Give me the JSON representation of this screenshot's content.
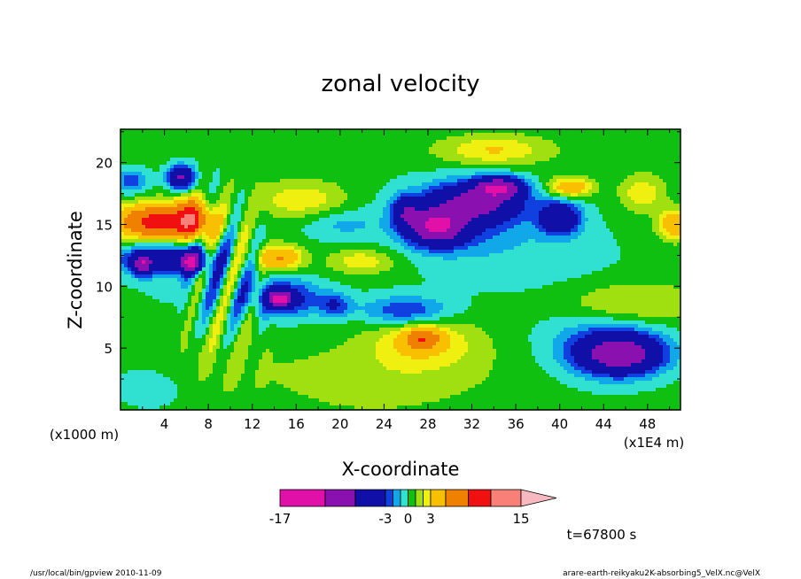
{
  "chart_data": {
    "type": "heatmap",
    "title": "zonal velocity",
    "xlabel": "X-coordinate",
    "ylabel": "Z-coordinate",
    "x_unit_left": "(x1000 m)",
    "x_unit_right": "(x1E4 m)",
    "xlim": [
      0,
      51
    ],
    "ylim": [
      0,
      22.7
    ],
    "x_ticks": [
      4,
      8,
      12,
      16,
      20,
      24,
      28,
      32,
      36,
      40,
      44,
      48
    ],
    "y_ticks": [
      5,
      10,
      15,
      20
    ],
    "time_label": "t=67800 s",
    "colorbar": {
      "levels": [
        -17,
        -11,
        -7,
        -3,
        -2,
        -1,
        0,
        1,
        2,
        3,
        5,
        8,
        11,
        15
      ],
      "tick_labels": [
        "-17",
        "-3",
        "0",
        "3",
        "15"
      ],
      "tick_values": [
        -17,
        -3,
        0,
        3,
        15
      ],
      "colors": [
        "#e010a8",
        "#8a10b0",
        "#1010a8",
        "#1040e0",
        "#10a8e8",
        "#30e0d0",
        "#10c010",
        "#a0e010",
        "#f0f010",
        "#f8c000",
        "#f08000",
        "#f01010",
        "#f88078",
        "#f8b8c0"
      ]
    },
    "features": [
      {
        "x": 3.5,
        "z": 15.2,
        "sx": 4.0,
        "sz": 1.4,
        "value": 9
      },
      {
        "x": 6.5,
        "z": 15.5,
        "sx": 1.4,
        "sz": 1.6,
        "value": 6
      },
      {
        "x": 4.0,
        "z": 12.2,
        "sx": 4.5,
        "sz": 1.3,
        "value": -5
      },
      {
        "x": 6.5,
        "z": 12.0,
        "sx": 1.0,
        "sz": 0.8,
        "value": -9
      },
      {
        "x": 2.0,
        "z": 11.8,
        "sx": 0.8,
        "sz": 0.8,
        "value": -8
      },
      {
        "x": 5.5,
        "z": 18.8,
        "sx": 1.2,
        "sz": 0.9,
        "value": -8
      },
      {
        "x": 1.0,
        "z": 18.5,
        "sx": 1.5,
        "sz": 1.0,
        "value": -3
      },
      {
        "x": 28.8,
        "z": 14.8,
        "sx": 2.5,
        "sz": 1.4,
        "value": -10
      },
      {
        "x": 32.5,
        "z": 16.8,
        "sx": 4.0,
        "sz": 1.5,
        "value": -7
      },
      {
        "x": 34.5,
        "z": 18.0,
        "sx": 2.0,
        "sz": 0.8,
        "value": -9
      },
      {
        "x": 30.5,
        "z": 15.5,
        "sx": 6.0,
        "sz": 2.8,
        "value": -2.5
      },
      {
        "x": 26.0,
        "z": 16.0,
        "sx": 1.2,
        "sz": 1.2,
        "value": -5
      },
      {
        "x": 40.0,
        "z": 15.5,
        "sx": 1.8,
        "sz": 1.3,
        "value": -6
      },
      {
        "x": 45.5,
        "z": 4.5,
        "sx": 3.5,
        "sz": 1.5,
        "value": -9
      },
      {
        "x": 44.0,
        "z": 5.5,
        "sx": 6.0,
        "sz": 3.0,
        "value": -2.5
      },
      {
        "x": 46.0,
        "z": 8.5,
        "sx": 6.5,
        "sz": 1.8,
        "value": 2.5
      },
      {
        "x": 41.0,
        "z": 18.0,
        "sx": 2.0,
        "sz": 0.8,
        "value": 4.5
      },
      {
        "x": 50.5,
        "z": 15.0,
        "sx": 1.5,
        "sz": 1.2,
        "value": 4.5
      },
      {
        "x": 47.5,
        "z": 17.5,
        "sx": 2.0,
        "sz": 1.5,
        "value": 2.5
      },
      {
        "x": 14.5,
        "z": 12.3,
        "sx": 2.0,
        "sz": 1.0,
        "value": 5
      },
      {
        "x": 15.0,
        "z": 9.0,
        "sx": 3.0,
        "sz": 1.5,
        "value": -4
      },
      {
        "x": 14.5,
        "z": 9.0,
        "sx": 1.0,
        "sz": 0.6,
        "value": -10
      },
      {
        "x": 19.5,
        "z": 8.5,
        "sx": 1.5,
        "sz": 1.0,
        "value": -3
      },
      {
        "x": 26.0,
        "z": 8.0,
        "sx": 4.0,
        "sz": 1.2,
        "value": -3.5
      },
      {
        "x": 22.0,
        "z": 12.0,
        "sx": 3.0,
        "sz": 1.0,
        "value": 2.5
      },
      {
        "x": 20.0,
        "z": 15.0,
        "sx": 3.5,
        "sz": 1.3,
        "value": -1.5
      },
      {
        "x": 16.5,
        "z": 17.0,
        "sx": 4.0,
        "sz": 1.5,
        "value": 2.5
      },
      {
        "x": 27.5,
        "z": 5.5,
        "sx": 4.5,
        "sz": 2.0,
        "value": 2.8
      },
      {
        "x": 27.5,
        "z": 5.8,
        "sx": 1.5,
        "sz": 0.8,
        "value": 5
      },
      {
        "x": 34.0,
        "z": 21.0,
        "sx": 5.0,
        "sz": 1.2,
        "value": 2.8
      },
      {
        "x": 35.5,
        "z": 5.5,
        "sx": 7.0,
        "sz": 5.0,
        "value": 0.5
      },
      {
        "x": 37.0,
        "z": 12.0,
        "sx": 9.0,
        "sz": 5.0,
        "value": -0.9
      },
      {
        "x": 23.0,
        "z": 2.5,
        "sx": 9.0,
        "sz": 3.0,
        "value": 1.2
      },
      {
        "x": 8.0,
        "z": 4.0,
        "sx": 6.0,
        "sz": 3.0,
        "value": 0.8
      },
      {
        "x": 10.0,
        "z": 9.5,
        "sx": 8.0,
        "sz": 2.0,
        "value": -0.8
      },
      {
        "x": 3.0,
        "z": 2.0,
        "sx": 4.0,
        "sz": 2.0,
        "value": -1.0
      }
    ],
    "oscillation": {
      "x0": 5.0,
      "x1": 14.0,
      "k": 2.2,
      "amplitude": 3.0
    }
  },
  "footer": {
    "left": "/usr/local/bin/gpview   2010-11-09",
    "right": "arare-earth-reikyaku2K-absorbing5_VelX.nc@VelX"
  }
}
